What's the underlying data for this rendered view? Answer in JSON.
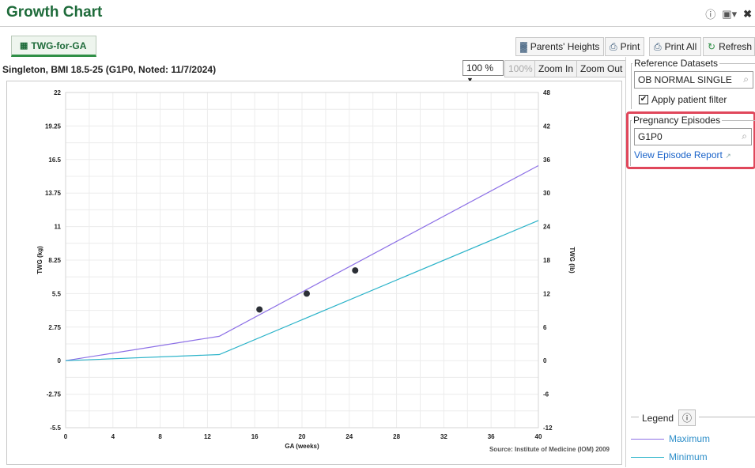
{
  "app": {
    "title": "Growth Chart"
  },
  "tabs": [
    {
      "label": "TWG-for-GA",
      "active": true
    }
  ],
  "toolbar": {
    "parents_heights": "Parents' Heights",
    "print": "Print",
    "print_all": "Print All",
    "refresh": "Refresh"
  },
  "chart_header": {
    "subtitle": "Singleton, BMI 18.5-25 (G1P0, Noted: 11/7/2024)",
    "zoom_value": "100 %",
    "zoom_reset": "100%",
    "zoom_in": "Zoom In",
    "zoom_out": "Zoom Out"
  },
  "side": {
    "reference_title": "Reference Datasets",
    "reference_value": "OB NORMAL SINGLE",
    "apply_filter_label": "Apply patient filter",
    "apply_filter_checked": true,
    "episodes_title": "Pregnancy Episodes",
    "episode_value": "G1P0",
    "episode_report_link": "View Episode Report",
    "legend_title": "Legend",
    "legend_items": [
      {
        "label": "Maximum",
        "color": "#8c6fe6"
      },
      {
        "label": "Minimum",
        "color": "#2bb3c9"
      }
    ]
  },
  "colors": {
    "accent_green": "#1e6b3a",
    "highlight_red": "#e0475b",
    "link_blue": "#1a63c9",
    "max_line": "#8c6fe6",
    "min_line": "#2bb3c9"
  },
  "chart_data": {
    "type": "line",
    "xlabel": "GA (weeks)",
    "ylabel": "TWG (kg)",
    "y2label": "TWG (lb)",
    "source": "Source: Institute of Medicine (IOM) 2009",
    "xlim": [
      0,
      40
    ],
    "ylim": [
      -5.5,
      22
    ],
    "y2lim": [
      -12,
      48
    ],
    "x_ticks": [
      0,
      4,
      8,
      12,
      16,
      20,
      24,
      28,
      32,
      36,
      40
    ],
    "y_ticks": [
      -5.5,
      -2.75,
      0,
      2.75,
      5.5,
      8.25,
      11,
      13.75,
      16.5,
      19.25,
      22
    ],
    "y2_ticks": [
      -12,
      -6,
      0,
      6,
      12,
      18,
      24,
      30,
      36,
      42,
      48
    ],
    "grid": true,
    "series": [
      {
        "name": "Maximum",
        "x": [
          0,
          13,
          40
        ],
        "y": [
          0,
          2,
          16
        ]
      },
      {
        "name": "Minimum",
        "x": [
          0,
          13,
          40
        ],
        "y": [
          0,
          0.5,
          11.5
        ]
      }
    ],
    "points": [
      {
        "x": 16.4,
        "y": 4.2
      },
      {
        "x": 20.4,
        "y": 5.5
      },
      {
        "x": 24.5,
        "y": 7.4
      }
    ]
  }
}
